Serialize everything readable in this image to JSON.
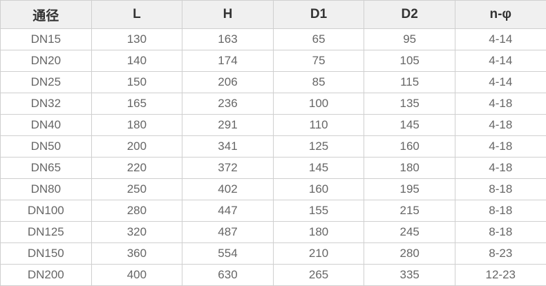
{
  "table": {
    "headers": [
      "通径",
      "L",
      "H",
      "D1",
      "D2",
      "n-φ"
    ],
    "rows": [
      [
        "DN15",
        "130",
        "163",
        "65",
        "95",
        "4-14"
      ],
      [
        "DN20",
        "140",
        "174",
        "75",
        "105",
        "4-14"
      ],
      [
        "DN25",
        "150",
        "206",
        "85",
        "115",
        "4-14"
      ],
      [
        "DN32",
        "165",
        "236",
        "100",
        "135",
        "4-18"
      ],
      [
        "DN40",
        "180",
        "291",
        "110",
        "145",
        "4-18"
      ],
      [
        "DN50",
        "200",
        "341",
        "125",
        "160",
        "4-18"
      ],
      [
        "DN65",
        "220",
        "372",
        "145",
        "180",
        "4-18"
      ],
      [
        "DN80",
        "250",
        "402",
        "160",
        "195",
        "8-18"
      ],
      [
        "DN100",
        "280",
        "447",
        "155",
        "215",
        "8-18"
      ],
      [
        "DN125",
        "320",
        "487",
        "180",
        "245",
        "8-18"
      ],
      [
        "DN150",
        "360",
        "554",
        "210",
        "280",
        "8-23"
      ],
      [
        "DN200",
        "400",
        "630",
        "265",
        "335",
        "12-23"
      ]
    ]
  }
}
